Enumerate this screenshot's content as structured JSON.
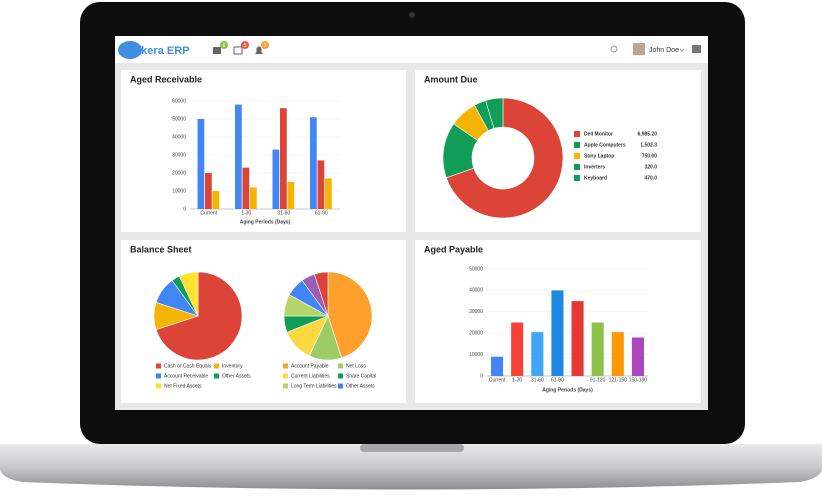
{
  "header": {
    "logo": "Deskera ERP",
    "badges": [
      "6",
      "5",
      "7"
    ],
    "user": "John Doe"
  },
  "chart_data": [
    {
      "type": "bar",
      "title": "Aged Receivable",
      "x_label": "Aging Periods (Days)",
      "categories": [
        "Current",
        "1-30",
        "31-60",
        "61-90"
      ],
      "series": [
        {
          "color": "#4285f4",
          "values": [
            50000,
            58000,
            33000,
            51000
          ]
        },
        {
          "color": "#db4437",
          "values": [
            20000,
            23000,
            56000,
            27000
          ]
        },
        {
          "color": "#f4b400",
          "values": [
            10000,
            12000,
            15000,
            17000
          ]
        }
      ],
      "ylim": [
        0,
        60000
      ],
      "yticks": [
        0,
        10000,
        20000,
        30000,
        40000,
        50000,
        60000
      ],
      "grid": true
    },
    {
      "type": "donut",
      "title": "Amount Due",
      "categories": [
        "Dell Monitor",
        "Apple Computers",
        "Sony Laptop",
        "Inverters",
        "Keyboard"
      ],
      "values": [
        6985.2,
        1502.3,
        750,
        320,
        470
      ],
      "value_labels": [
        "6,985.20",
        "1,502.3",
        "750.00",
        "320.0",
        "470.0"
      ],
      "colors": [
        "#db4437",
        "#0f9d58",
        "#f4b400",
        "#0f9d58",
        "#0f9d58"
      ]
    },
    {
      "type": "pie",
      "title": "Balance Sheet",
      "pies": [
        {
          "categories": [
            "Cash or Cash Equals",
            "Inventory",
            "Account Receivable",
            "Other Assets",
            "Net Fixed Assets"
          ],
          "values": [
            70,
            10,
            10,
            3,
            7
          ],
          "colors": [
            "#db4437",
            "#f4b400",
            "#4285f4",
            "#0f9d58",
            "#ffe22e"
          ]
        },
        {
          "categories": [
            "Account Payable",
            "Net Loss",
            "Current Liabilities",
            "Share Capital",
            "Long Term Liabilities",
            "Other Assets",
            null,
            null
          ],
          "values": [
            45,
            12,
            12,
            6,
            8,
            7,
            5,
            5
          ],
          "colors": [
            "#ff9f2e",
            "#9ccc65",
            "#ffd740",
            "#0f9d58",
            "#b5d56a",
            "#4285f4",
            "#9c5fb5",
            "#db4437"
          ]
        }
      ]
    },
    {
      "type": "bar",
      "title": "Aged Payable",
      "x_label": "Aging Periods (Days)",
      "categories": [
        "Current",
        "1-30",
        "31-60",
        "61-90",
        null,
        "91-120",
        "121-150",
        "150-180"
      ],
      "values": [
        9000,
        25000,
        20500,
        40000,
        35000,
        25000,
        20500,
        18000
      ],
      "colors": [
        "#4285f4",
        "#f44336",
        "#42a5f5",
        "#1e88e5",
        "#e53935",
        "#8bc34a",
        "#ff9800",
        "#ab47bc"
      ],
      "ylim": [
        0,
        50000
      ],
      "yticks": [
        0,
        10000,
        20000,
        30000,
        40000,
        50000
      ],
      "grid": true
    }
  ]
}
